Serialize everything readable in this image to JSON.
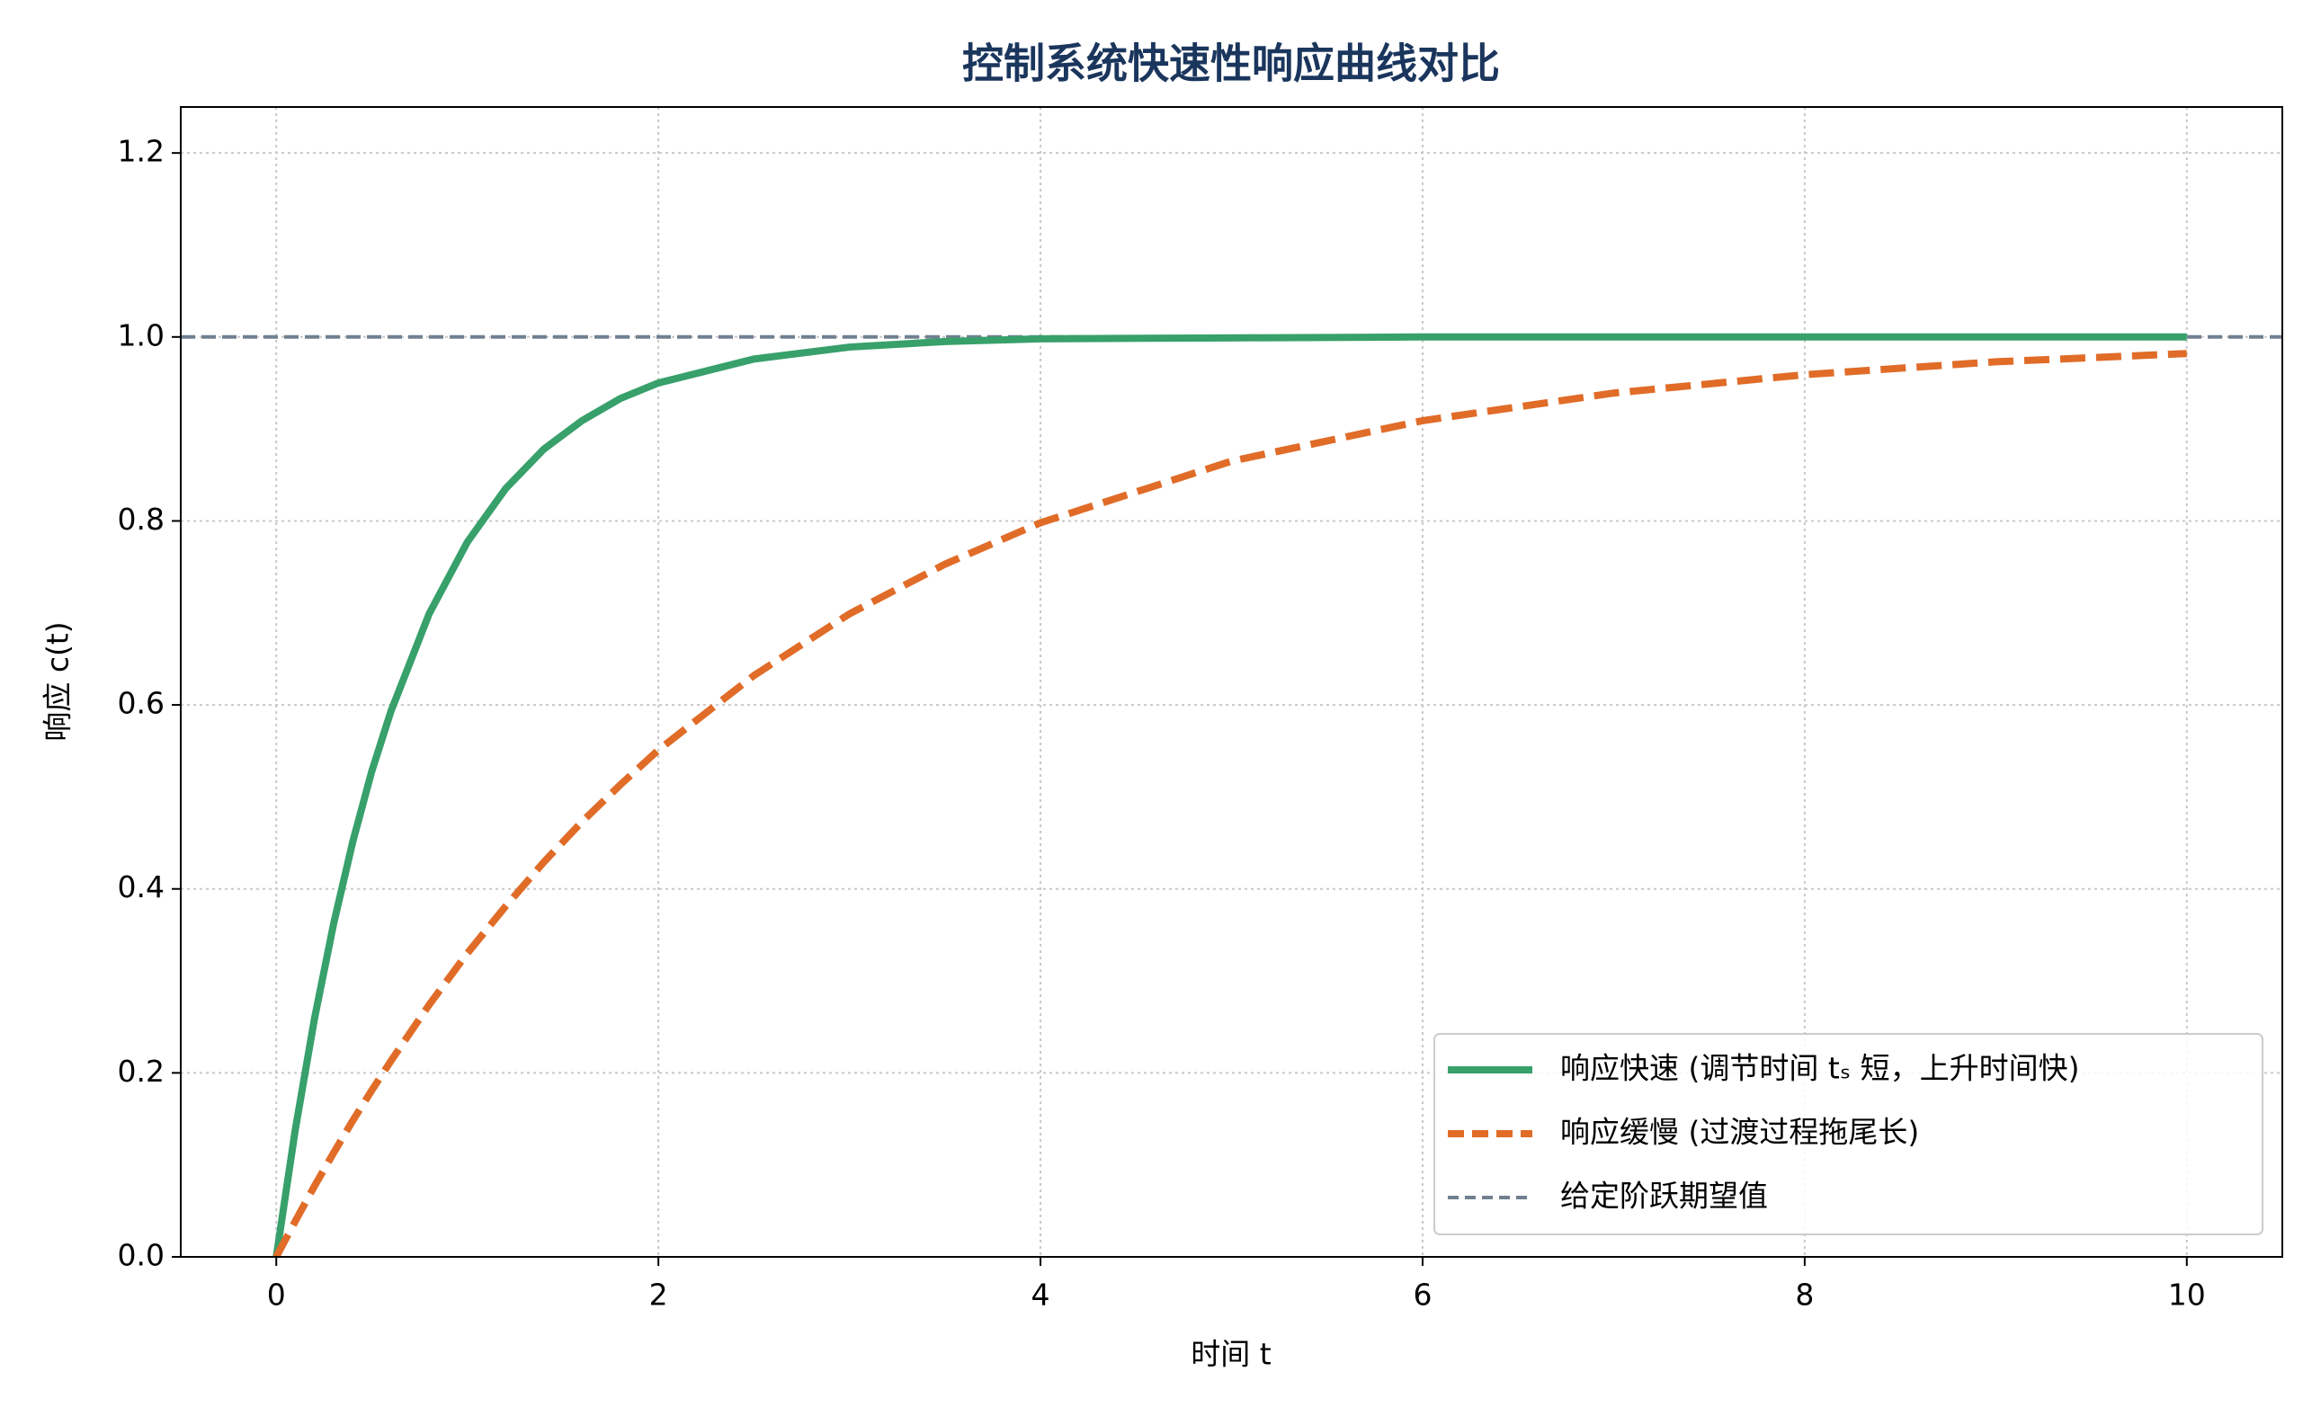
{
  "chart_data": {
    "type": "line",
    "title": "控制系统快速性响应曲线对比",
    "x_label": "时间 t",
    "y_label": "响应 c(t)",
    "x": [
      0,
      0.1,
      0.2,
      0.3,
      0.4,
      0.5,
      0.6,
      0.8,
      1,
      1.2,
      1.4,
      1.6,
      1.8,
      2,
      2.5,
      3,
      3.5,
      4,
      5,
      6,
      7,
      8,
      9,
      10
    ],
    "series": [
      {
        "name": "响应快速 (调节时间 tₛ 短，上升时间快)",
        "color": "#38a06a",
        "dashed": false,
        "values": [
          0,
          0.139,
          0.259,
          0.362,
          0.451,
          0.528,
          0.593,
          0.699,
          0.777,
          0.835,
          0.878,
          0.909,
          0.933,
          0.95,
          0.976,
          0.989,
          0.995,
          0.998,
          0.999,
          1,
          1,
          1,
          1,
          1
        ]
      },
      {
        "name": "响应缓慢 (过渡过程拖尾长)",
        "color": "#e06c28",
        "dashed": true,
        "values": [
          0,
          0.039,
          0.077,
          0.113,
          0.148,
          0.181,
          0.213,
          0.274,
          0.33,
          0.381,
          0.429,
          0.473,
          0.513,
          0.551,
          0.632,
          0.699,
          0.753,
          0.798,
          0.865,
          0.909,
          0.939,
          0.959,
          0.973,
          0.982
        ]
      }
    ],
    "reference_line": {
      "name": "给定阶跃期望值",
      "value": 1,
      "color": "#708090"
    },
    "xlim": [
      -0.5,
      10.5
    ],
    "ylim": [
      0,
      1.25
    ],
    "xticks": [
      0,
      2,
      4,
      6,
      8,
      10
    ],
    "yticks": [
      {
        "value": 0,
        "label": "0.0"
      },
      {
        "value": 0.2,
        "label": "0.2"
      },
      {
        "value": 0.4,
        "label": "0.4"
      },
      {
        "value": 0.6,
        "label": "0.6"
      },
      {
        "value": 0.8,
        "label": "0.8"
      },
      {
        "value": 1,
        "label": "1.0"
      },
      {
        "value": 1.2,
        "label": "1.2"
      }
    ],
    "grid": true,
    "legend": "lower right"
  }
}
